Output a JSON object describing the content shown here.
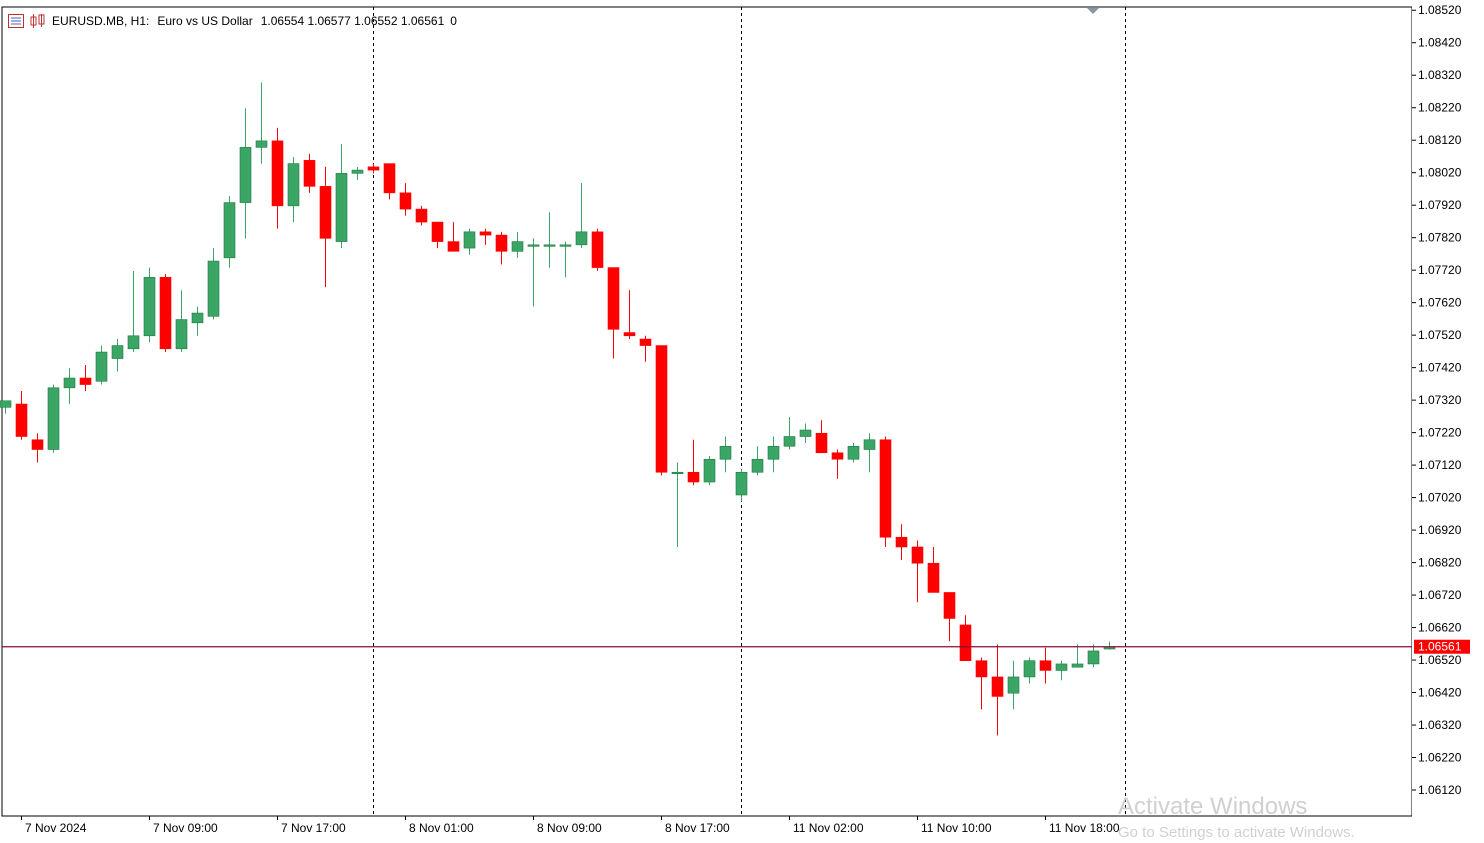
{
  "header": {
    "symbol": "EURUSD.MB, H1:",
    "description": "Euro vs US Dollar",
    "ohlc": "1.06554 1.06577 1.06552 1.06561",
    "volume": "0"
  },
  "watermark": {
    "line1": "Activate Windows",
    "line2": "Go to Settings to activate Windows."
  },
  "colors": {
    "bull": "#3aa564",
    "bear": "#ff0000",
    "price_line": "#8b0a3a",
    "price_label_bg": "#ff0000"
  },
  "chart_data": {
    "type": "candlestick",
    "symbol": "EURUSD.MB",
    "timeframe": "H1",
    "current_price": "1.06561",
    "ylim": [
      1.0604,
      1.0853
    ],
    "y_ticks": [
      "1.08520",
      "1.08420",
      "1.08320",
      "1.08220",
      "1.08120",
      "1.08020",
      "1.07920",
      "1.07820",
      "1.07720",
      "1.07620",
      "1.07520",
      "1.07420",
      "1.07320",
      "1.07220",
      "1.07120",
      "1.07020",
      "1.06920",
      "1.06820",
      "1.06720",
      "1.06620",
      "1.06520",
      "1.06420",
      "1.06320",
      "1.06220",
      "1.06120"
    ],
    "x_labels": [
      {
        "index": 1,
        "label": "7 Nov 2024"
      },
      {
        "index": 9,
        "label": "7 Nov 09:00"
      },
      {
        "index": 17,
        "label": "7 Nov 17:00"
      },
      {
        "index": 25,
        "label": "8 Nov 01:00"
      },
      {
        "index": 33,
        "label": "8 Nov 09:00"
      },
      {
        "index": 41,
        "label": "8 Nov 17:00"
      },
      {
        "index": 49,
        "label": "11 Nov 02:00"
      },
      {
        "index": 57,
        "label": "11 Nov 10:00"
      },
      {
        "index": 65,
        "label": "11 Nov 18:00"
      }
    ],
    "session_separators": [
      23,
      46,
      70
    ],
    "grid": false,
    "candles": [
      {
        "o": 1.07298,
        "h": 1.07318,
        "l": 1.07278,
        "c": 1.07318
      },
      {
        "o": 1.07308,
        "h": 1.07348,
        "l": 1.07198,
        "c": 1.07208
      },
      {
        "o": 1.07198,
        "h": 1.07218,
        "l": 1.07128,
        "c": 1.07168
      },
      {
        "o": 1.07168,
        "h": 1.07368,
        "l": 1.07158,
        "c": 1.07358
      },
      {
        "o": 1.07358,
        "h": 1.07418,
        "l": 1.07308,
        "c": 1.07388
      },
      {
        "o": 1.07388,
        "h": 1.07428,
        "l": 1.07348,
        "c": 1.07368
      },
      {
        "o": 1.07378,
        "h": 1.07488,
        "l": 1.07368,
        "c": 1.07468
      },
      {
        "o": 1.07448,
        "h": 1.07508,
        "l": 1.07408,
        "c": 1.07488
      },
      {
        "o": 1.07478,
        "h": 1.07718,
        "l": 1.07468,
        "c": 1.07518
      },
      {
        "o": 1.07518,
        "h": 1.07728,
        "l": 1.07498,
        "c": 1.07698
      },
      {
        "o": 1.07698,
        "h": 1.07708,
        "l": 1.07468,
        "c": 1.07478
      },
      {
        "o": 1.07478,
        "h": 1.07658,
        "l": 1.07468,
        "c": 1.07568
      },
      {
        "o": 1.07558,
        "h": 1.07608,
        "l": 1.07518,
        "c": 1.07588
      },
      {
        "o": 1.07578,
        "h": 1.07788,
        "l": 1.07568,
        "c": 1.07748
      },
      {
        "o": 1.07758,
        "h": 1.07948,
        "l": 1.07728,
        "c": 1.07928
      },
      {
        "o": 1.07928,
        "h": 1.08218,
        "l": 1.07818,
        "c": 1.08098
      },
      {
        "o": 1.08098,
        "h": 1.08298,
        "l": 1.08048,
        "c": 1.08118
      },
      {
        "o": 1.08118,
        "h": 1.08158,
        "l": 1.07848,
        "c": 1.07918
      },
      {
        "o": 1.07918,
        "h": 1.08068,
        "l": 1.07868,
        "c": 1.08048
      },
      {
        "o": 1.08058,
        "h": 1.08078,
        "l": 1.07958,
        "c": 1.07978
      },
      {
        "o": 1.07978,
        "h": 1.08038,
        "l": 1.07668,
        "c": 1.07818
      },
      {
        "o": 1.07808,
        "h": 1.08108,
        "l": 1.07788,
        "c": 1.08018
      },
      {
        "o": 1.08018,
        "h": 1.08038,
        "l": 1.07998,
        "c": 1.08028
      },
      {
        "o": 1.08038,
        "h": 1.08048,
        "l": 1.08018,
        "c": 1.08028
      },
      {
        "o": 1.08048,
        "h": 1.08048,
        "l": 1.07938,
        "c": 1.07958
      },
      {
        "o": 1.07958,
        "h": 1.07988,
        "l": 1.07888,
        "c": 1.07908
      },
      {
        "o": 1.07908,
        "h": 1.07918,
        "l": 1.07858,
        "c": 1.07868
      },
      {
        "o": 1.07868,
        "h": 1.07868,
        "l": 1.07788,
        "c": 1.07808
      },
      {
        "o": 1.07808,
        "h": 1.07868,
        "l": 1.07778,
        "c": 1.07778
      },
      {
        "o": 1.07788,
        "h": 1.07848,
        "l": 1.07768,
        "c": 1.07838
      },
      {
        "o": 1.07838,
        "h": 1.07848,
        "l": 1.07798,
        "c": 1.07828
      },
      {
        "o": 1.07828,
        "h": 1.07838,
        "l": 1.07738,
        "c": 1.07778
      },
      {
        "o": 1.07778,
        "h": 1.07838,
        "l": 1.07758,
        "c": 1.07808
      },
      {
        "o": 1.07798,
        "h": 1.07818,
        "l": 1.07608,
        "c": 1.07798
      },
      {
        "o": 1.07798,
        "h": 1.07898,
        "l": 1.07728,
        "c": 1.07798
      },
      {
        "o": 1.07798,
        "h": 1.07808,
        "l": 1.07698,
        "c": 1.07798
      },
      {
        "o": 1.07798,
        "h": 1.07988,
        "l": 1.07788,
        "c": 1.07838
      },
      {
        "o": 1.07838,
        "h": 1.07848,
        "l": 1.07718,
        "c": 1.07728
      },
      {
        "o": 1.07728,
        "h": 1.07728,
        "l": 1.07448,
        "c": 1.07538
      },
      {
        "o": 1.07528,
        "h": 1.07658,
        "l": 1.07508,
        "c": 1.07518
      },
      {
        "o": 1.07508,
        "h": 1.07518,
        "l": 1.07438,
        "c": 1.07488
      },
      {
        "o": 1.07488,
        "h": 1.07488,
        "l": 1.07088,
        "c": 1.07098
      },
      {
        "o": 1.07098,
        "h": 1.07128,
        "l": 1.06868,
        "c": 1.07098
      },
      {
        "o": 1.07098,
        "h": 1.07198,
        "l": 1.07058,
        "c": 1.07068
      },
      {
        "o": 1.07068,
        "h": 1.07148,
        "l": 1.07058,
        "c": 1.07138
      },
      {
        "o": 1.07138,
        "h": 1.07208,
        "l": 1.07098,
        "c": 1.07178
      },
      {
        "o": 1.07028,
        "h": 1.07108,
        "l": 1.07008,
        "c": 1.07098
      },
      {
        "o": 1.07098,
        "h": 1.07178,
        "l": 1.07088,
        "c": 1.07138
      },
      {
        "o": 1.07138,
        "h": 1.07208,
        "l": 1.07098,
        "c": 1.07178
      },
      {
        "o": 1.07178,
        "h": 1.07268,
        "l": 1.07168,
        "c": 1.07208
      },
      {
        "o": 1.07208,
        "h": 1.07248,
        "l": 1.07188,
        "c": 1.07228
      },
      {
        "o": 1.07218,
        "h": 1.07258,
        "l": 1.07158,
        "c": 1.07158
      },
      {
        "o": 1.07158,
        "h": 1.07168,
        "l": 1.07078,
        "c": 1.07138
      },
      {
        "o": 1.07138,
        "h": 1.07188,
        "l": 1.07128,
        "c": 1.07178
      },
      {
        "o": 1.07168,
        "h": 1.07218,
        "l": 1.07098,
        "c": 1.07198
      },
      {
        "o": 1.07198,
        "h": 1.07208,
        "l": 1.06868,
        "c": 1.06898
      },
      {
        "o": 1.06898,
        "h": 1.06938,
        "l": 1.06828,
        "c": 1.06868
      },
      {
        "o": 1.06868,
        "h": 1.06888,
        "l": 1.06698,
        "c": 1.06818
      },
      {
        "o": 1.06818,
        "h": 1.06868,
        "l": 1.06738,
        "c": 1.06728
      },
      {
        "o": 1.06728,
        "h": 1.06728,
        "l": 1.06578,
        "c": 1.06648
      },
      {
        "o": 1.06628,
        "h": 1.06658,
        "l": 1.06538,
        "c": 1.06518
      },
      {
        "o": 1.06518,
        "h": 1.06528,
        "l": 1.06368,
        "c": 1.06468
      },
      {
        "o": 1.06468,
        "h": 1.06568,
        "l": 1.06288,
        "c": 1.06408
      },
      {
        "o": 1.06418,
        "h": 1.06518,
        "l": 1.06368,
        "c": 1.06468
      },
      {
        "o": 1.06468,
        "h": 1.06528,
        "l": 1.06448,
        "c": 1.06518
      },
      {
        "o": 1.06518,
        "h": 1.06558,
        "l": 1.06448,
        "c": 1.06488
      },
      {
        "o": 1.06488,
        "h": 1.06518,
        "l": 1.06458,
        "c": 1.06508
      },
      {
        "o": 1.06498,
        "h": 1.06568,
        "l": 1.06498,
        "c": 1.06508
      },
      {
        "o": 1.06508,
        "h": 1.06568,
        "l": 1.06498,
        "c": 1.06548
      },
      {
        "o": 1.06554,
        "h": 1.06577,
        "l": 1.06552,
        "c": 1.06561
      }
    ]
  }
}
